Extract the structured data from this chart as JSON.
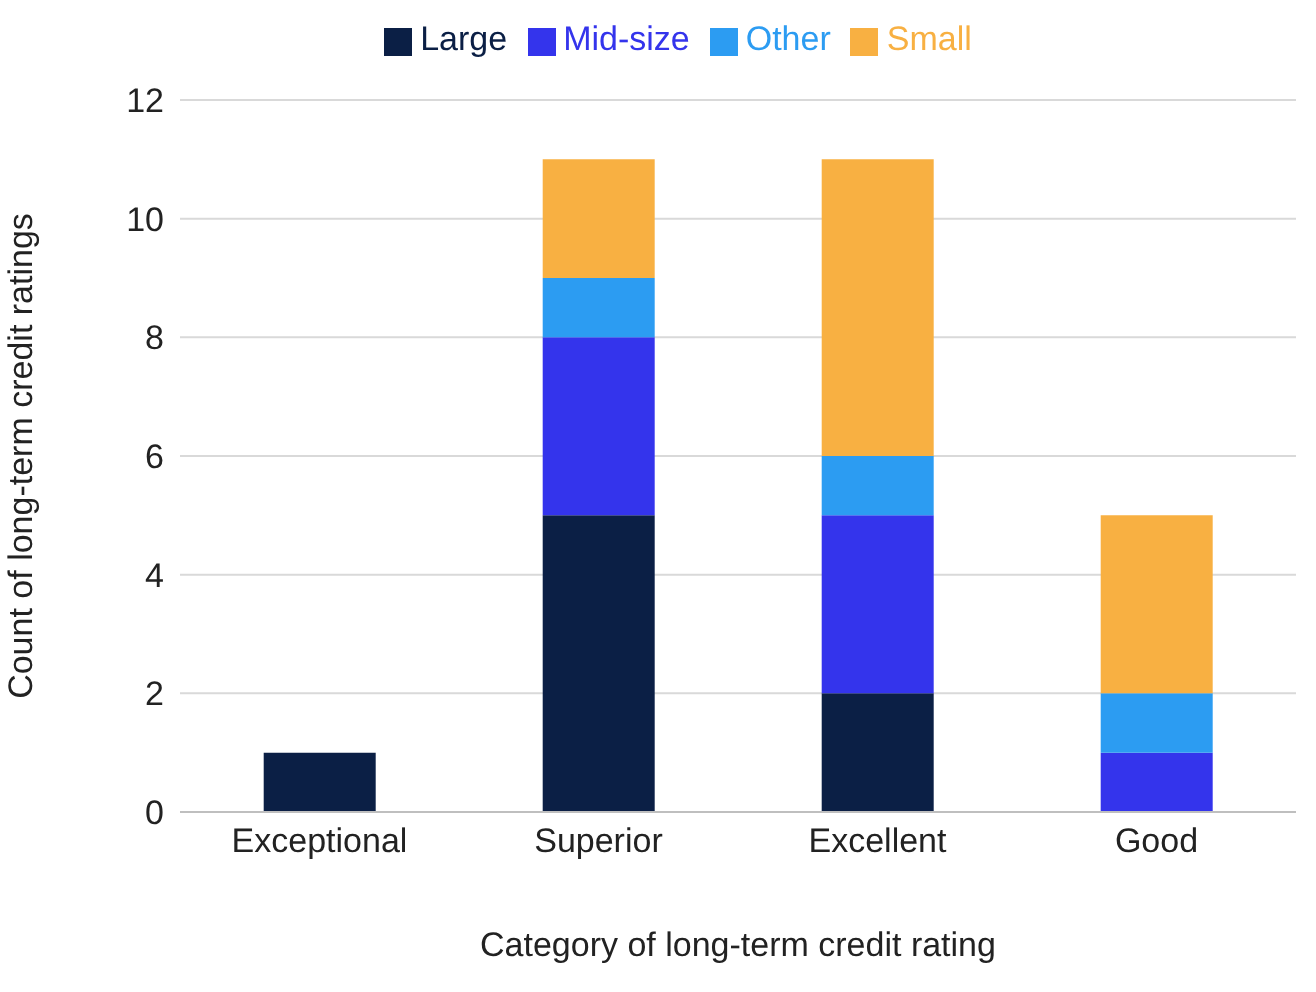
{
  "chart_data": {
    "type": "bar",
    "stacked": true,
    "xlabel": "Category of long-term credit rating",
    "ylabel": "Count of long-term credit ratings",
    "categories": [
      "Exceptional",
      "Superior",
      "Excellent",
      "Good"
    ],
    "series": [
      {
        "name": "Large",
        "color": "#0b1f45",
        "values": [
          1,
          5,
          2,
          0
        ]
      },
      {
        "name": "Mid-size",
        "color": "#3434ec",
        "values": [
          0,
          3,
          3,
          1
        ]
      },
      {
        "name": "Other",
        "color": "#2c9cf2",
        "values": [
          0,
          1,
          1,
          1
        ]
      },
      {
        "name": "Small",
        "color": "#f8b042",
        "values": [
          0,
          2,
          5,
          3
        ]
      }
    ],
    "ylim": [
      0,
      12
    ],
    "yticks": [
      0,
      2,
      4,
      6,
      8,
      10,
      12
    ],
    "grid": "y",
    "legend": "top"
  }
}
